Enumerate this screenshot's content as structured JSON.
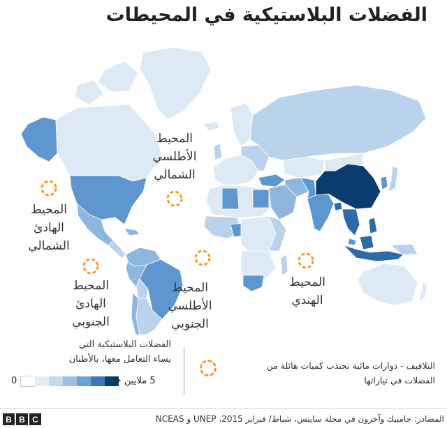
{
  "title": "الفضلات البلاستيكية في المحيطات",
  "oceans": {
    "north_atlantic": [
      "المحيط",
      "الأطلسي",
      "الشمالي"
    ],
    "north_pacific": [
      "المحيط",
      "الهادئ",
      "الشمالي"
    ],
    "south_pacific": [
      "المحيط",
      "الهادئ",
      "الجنوبي"
    ],
    "south_atlantic": [
      "المحيط الأطلسي",
      "الجنوبي"
    ],
    "indian": [
      "المحيط",
      "الهندي"
    ]
  },
  "legend": {
    "scale_title": [
      "الفضلات البلاستيكية التي",
      "يساء التعامل معها، بالأطنان"
    ],
    "scale_min": "0",
    "scale_max": "5 ملايين <",
    "scale_colors": [
      "#ffffff",
      "#e3edf7",
      "#c5d9ee",
      "#9cc0e1",
      "#6ca3d2",
      "#3a78b8",
      "#0b3c6e"
    ],
    "gyre_text": [
      "التلافيف - دوارات مائية تجتذب كميات هائلة من",
      "الفضلات في تياراتها"
    ],
    "gyre_color": "#f39c2a"
  },
  "colors": {
    "china": "#0b3c6e",
    "very_high": "#2f6aa8",
    "high": "#5e97cf",
    "medium": "#8db7df",
    "low": "#b9d3ec",
    "very_low": "#dde9f5",
    "borders": "#ffffff"
  },
  "footer": {
    "logo": [
      "B",
      "B",
      "C"
    ],
    "source": "المصادر: جامبيك وآخرون في مجلة ساينس، شباط/ فبراير 2015، UNEP و NCEAS"
  }
}
